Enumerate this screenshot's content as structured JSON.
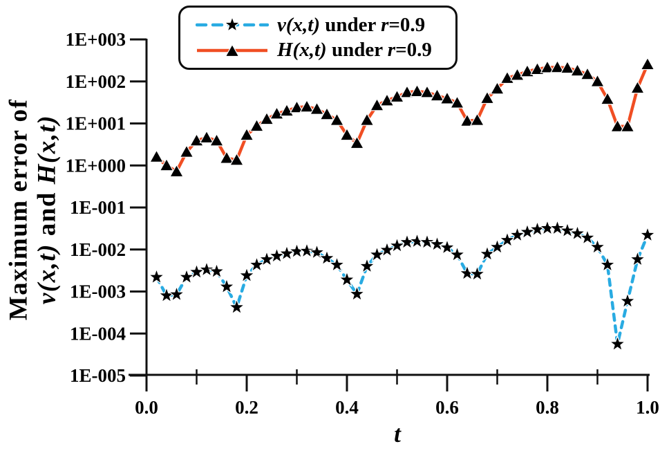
{
  "colors": {
    "background": "#ffffff",
    "axis": "#111111",
    "tick_label": "#000000",
    "v_line": "#29ABE2",
    "h_line": "#F04E23",
    "marker_fill": "#000000",
    "marker_halo": "#ffffff",
    "legend_border": "#0d0d0d"
  },
  "chart_data": {
    "type": "line",
    "title": "",
    "xlabel": "t",
    "ylabel": "Maximum error of v(x,t) and H(x,t)",
    "x_axis": {
      "min": 0.0,
      "max": 1.0,
      "scale": "linear"
    },
    "y_axis": {
      "min": 1e-05,
      "max": 1000,
      "scale": "log"
    },
    "grid": false,
    "legend_position": "top-center",
    "y_tick_labels": [
      "1E+003",
      "1E+002",
      "1E+001",
      "1E+000",
      "1E-001",
      "1E-002",
      "1E-003",
      "1E-004",
      "1E-005"
    ],
    "y_tick_values": [
      1000,
      100,
      10,
      1,
      0.1,
      0.01,
      0.001,
      0.0001,
      1e-05
    ],
    "x_tick_labels": [
      "0.0",
      "0.2",
      "0.4",
      "0.6",
      "0.8",
      "1.0"
    ],
    "x_ticks_major": [
      0.0,
      0.2,
      0.4,
      0.6,
      0.8,
      1.0
    ],
    "x_ticks_minor": [
      0.1,
      0.3,
      0.5,
      0.7,
      0.9
    ],
    "x": [
      0.02,
      0.04,
      0.06,
      0.08,
      0.1,
      0.12,
      0.14,
      0.16,
      0.18,
      0.2,
      0.22,
      0.24,
      0.26,
      0.28,
      0.3,
      0.32,
      0.34,
      0.36,
      0.38,
      0.4,
      0.42,
      0.44,
      0.46,
      0.48,
      0.5,
      0.52,
      0.54,
      0.56,
      0.58,
      0.6,
      0.62,
      0.64,
      0.66,
      0.68,
      0.7,
      0.72,
      0.74,
      0.76,
      0.78,
      0.8,
      0.82,
      0.84,
      0.86,
      0.88,
      0.9,
      0.92,
      0.94,
      0.96,
      0.98,
      1.0
    ],
    "series": [
      {
        "name": "v(x,t) under r=0.9",
        "line_style": "dashed",
        "line_color": "#29ABE2",
        "marker": "star",
        "marker_color": "#000000",
        "values": [
          0.0022,
          0.0008,
          0.00085,
          0.0022,
          0.0029,
          0.0033,
          0.003,
          0.0013,
          0.00042,
          0.0024,
          0.0043,
          0.0058,
          0.007,
          0.008,
          0.009,
          0.0092,
          0.0085,
          0.0062,
          0.0043,
          0.0019,
          0.00087,
          0.004,
          0.0075,
          0.0097,
          0.0123,
          0.0149,
          0.0156,
          0.0149,
          0.0133,
          0.0111,
          0.0075,
          0.0027,
          0.0026,
          0.0078,
          0.0114,
          0.0167,
          0.022,
          0.026,
          0.03,
          0.032,
          0.032,
          0.028,
          0.024,
          0.019,
          0.0114,
          0.0043,
          5.6e-05,
          0.00059,
          0.0058,
          0.022
        ]
      },
      {
        "name": "H(x,t) under r=0.9",
        "line_style": "solid",
        "line_color": "#F04E23",
        "marker": "triangle",
        "marker_color": "#000000",
        "values": [
          1.6,
          1.0,
          0.72,
          2.1,
          3.9,
          4.6,
          3.9,
          1.5,
          1.35,
          5.3,
          8.7,
          12.7,
          17,
          20,
          24,
          25,
          22,
          16.5,
          12,
          5.3,
          3.4,
          12,
          27,
          35,
          43,
          55,
          58,
          55,
          46,
          39,
          31,
          11.5,
          12,
          40,
          67,
          120,
          142,
          173,
          195,
          215,
          217,
          210,
          180,
          148,
          100,
          38,
          8.5,
          8.5,
          70,
          255
        ]
      }
    ]
  },
  "legend": {
    "entries": [
      {
        "sample": "dashed-line-star-marker",
        "plain_text": "v(x,t) under r=0.9",
        "runs": [
          {
            "t": "v(x,t)",
            "i": true
          },
          {
            "t": " under ",
            "i": false
          },
          {
            "t": "r",
            "i": true
          },
          {
            "t": "=0.9",
            "i": false
          }
        ]
      },
      {
        "sample": "solid-line-triangle-marker",
        "plain_text": "H(x,t) under r=0.9",
        "runs": [
          {
            "t": "H(x,t)",
            "i": true
          },
          {
            "t": " under ",
            "i": false
          },
          {
            "t": "r",
            "i": true
          },
          {
            "t": "=0.9",
            "i": false
          }
        ]
      }
    ]
  },
  "labels": {
    "ylabel_line1_runs": [
      {
        "t": "Maximum error of",
        "i": false
      }
    ],
    "ylabel_line2_runs": [
      {
        "t": "v(x,t)",
        "i": true
      },
      {
        "t": " and ",
        "i": false
      },
      {
        "t": "H(x,t)",
        "i": true
      }
    ],
    "xlabel_runs": [
      {
        "t": "t",
        "i": true
      }
    ]
  }
}
